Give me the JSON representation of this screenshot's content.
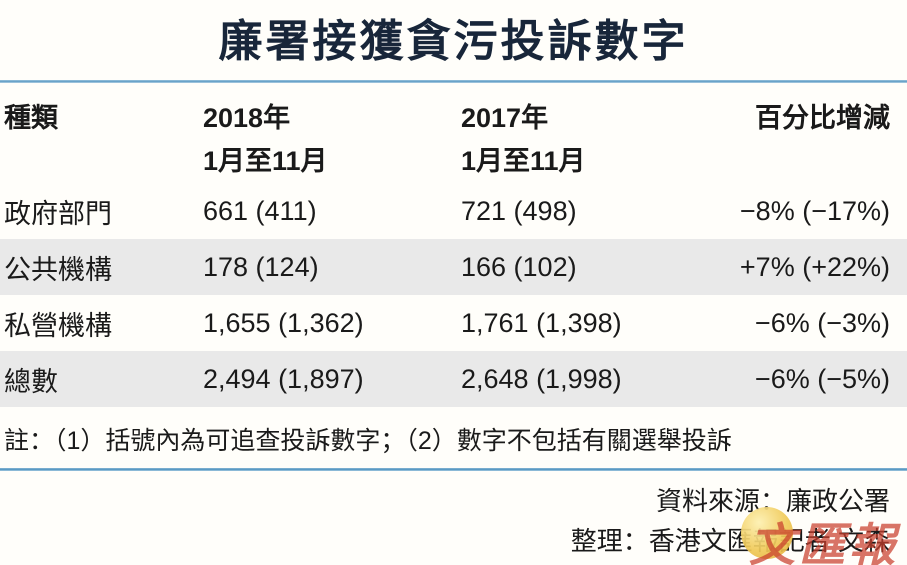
{
  "title": "廉署接獲貪污投訴數字",
  "colors": {
    "title_navy": "#18263a",
    "rule_blue": "#5f9cc4",
    "row_alt_gray": "#e9e9e9",
    "watermark_red": "#c93e2d",
    "watermark_gold": "#f0ca58"
  },
  "table": {
    "columns": {
      "category": "種類",
      "y2018_line1": "2018年",
      "y2018_line2": "1月至11月",
      "y2017_line1": "2017年",
      "y2017_line2": "1月至11月",
      "change": "百分比增減"
    },
    "rows": [
      {
        "category": "政府部門",
        "y2018": "661 (411)",
        "y2017": "721 (498)",
        "change": "−8% (−17%)"
      },
      {
        "category": "公共機構",
        "y2018": "178 (124)",
        "y2017": "166 (102)",
        "change": "+7% (+22%)"
      },
      {
        "category": "私營機構",
        "y2018": "1,655 (1,362)",
        "y2017": "1,761 (1,398)",
        "change": "−6% (−3%)"
      },
      {
        "category": "總數",
        "y2018": "2,494 (1,897)",
        "y2017": "2,648 (1,998)",
        "change": "−6% (−5%)"
      }
    ]
  },
  "note": "註：（1）括號內為可追查投訴數字；（2）數字不包括有關選舉投訴",
  "footer": {
    "source": "資料來源：廉政公署",
    "credit": "整理：香港文匯報記者 文森",
    "watermark": "文匯報"
  },
  "chart_data": {
    "type": "table",
    "title": "廉署接獲貪污投訴數字",
    "columns": [
      "種類",
      "2018年1月至11月",
      "2017年1月至11月",
      "百分比增減"
    ],
    "rows": [
      [
        "政府部門",
        "661 (411)",
        "721 (498)",
        "−8% (−17%)"
      ],
      [
        "公共機構",
        "178 (124)",
        "166 (102)",
        "+7% (+22%)"
      ],
      [
        "私營機構",
        "1,655 (1,362)",
        "1,761 (1,398)",
        "−6% (−3%)"
      ],
      [
        "總數",
        "2,494 (1,897)",
        "2,648 (1,998)",
        "−6% (−5%)"
      ]
    ],
    "pursuable_in_parentheses": {
      "2018": [
        411,
        124,
        1362,
        1897
      ],
      "2017": [
        498,
        102,
        1398,
        1998
      ]
    },
    "totals": {
      "2018": 2494,
      "2017": 2648
    },
    "note": "註：（1）括號內為可追查投訴數字；（2）數字不包括有關選舉投訴",
    "source": "資料來源：廉政公署"
  }
}
